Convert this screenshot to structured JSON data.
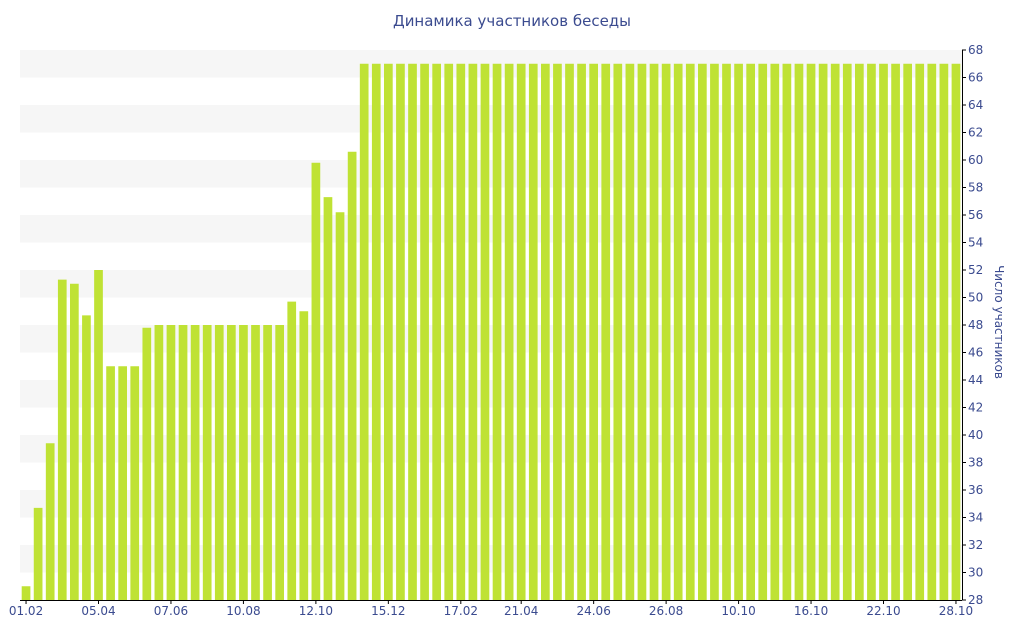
{
  "chart_data": {
    "type": "bar",
    "title": "Динамика участников беседы",
    "ylabel": "Число участников",
    "ylim": [
      28,
      68
    ],
    "y_ticks": [
      28,
      30,
      32,
      34,
      36,
      38,
      40,
      42,
      44,
      46,
      48,
      50,
      52,
      54,
      56,
      58,
      60,
      62,
      64,
      66,
      68
    ],
    "x_tick_labels": [
      "01.02",
      "05.04",
      "07.06",
      "10.08",
      "12.10",
      "15.12",
      "17.02",
      "21.04",
      "24.06",
      "26.08",
      "10.10",
      "16.10",
      "22.10",
      "28.10"
    ],
    "y_axis_position": "right",
    "grid": "alternating horizontal bands",
    "colors": {
      "bar": "#bfe234",
      "band": "#f6f6f6",
      "text": "#3b4b8f",
      "axis": "#000000"
    },
    "values": [
      29,
      34.7,
      39.4,
      51.3,
      51,
      48.7,
      52,
      45,
      45,
      45,
      47.8,
      48,
      48,
      48,
      48,
      48,
      48,
      48,
      48,
      48,
      48,
      48,
      49.7,
      49,
      59.8,
      57.3,
      56.2,
      60.6,
      67,
      67,
      67,
      67,
      67,
      67,
      67,
      67,
      67,
      67,
      67,
      67,
      67,
      67,
      67,
      67,
      67,
      67,
      67,
      67,
      67,
      67,
      67,
      67,
      67,
      67,
      67,
      67,
      67,
      67,
      67,
      67,
      67,
      67,
      67,
      67,
      67,
      67,
      67,
      67,
      67,
      67,
      67,
      67,
      67,
      67,
      67,
      67,
      67,
      67
    ]
  }
}
